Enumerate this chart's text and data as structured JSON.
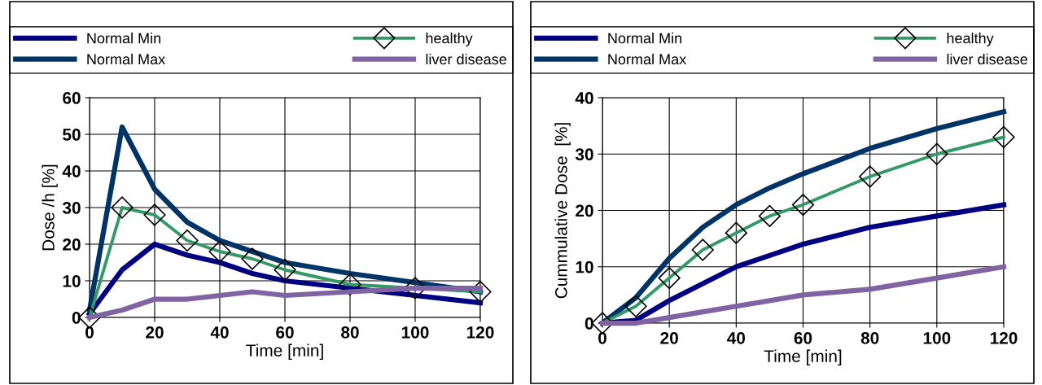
{
  "chart_data": [
    {
      "type": "line",
      "xlabel": "Time [min]",
      "ylabel": "Dose /h [%]",
      "x": [
        0,
        10,
        20,
        30,
        40,
        50,
        60,
        80,
        100,
        120
      ],
      "xlim": [
        0,
        120
      ],
      "xticks": [
        0,
        20,
        40,
        60,
        80,
        100,
        120
      ],
      "ylim": [
        0,
        60
      ],
      "yticks": [
        0,
        10,
        20,
        30,
        40,
        50,
        60
      ],
      "grid": true,
      "legend": "top",
      "series": [
        {
          "name": "Normal Min",
          "color": "#000080",
          "marker": "none",
          "values": [
            1,
            13,
            20,
            17,
            15,
            12,
            10,
            8,
            6,
            4
          ]
        },
        {
          "name": "Normal Max",
          "color": "#003366",
          "marker": "none",
          "values": [
            2,
            52,
            35,
            26,
            21,
            18,
            15,
            12,
            9.5,
            7
          ]
        },
        {
          "name": "healthy",
          "color": "#339966",
          "marker": "diamond",
          "values": [
            0,
            30,
            28,
            21,
            18,
            16,
            13,
            9,
            8,
            7
          ]
        },
        {
          "name": "liver disease",
          "color": "#8064a2",
          "marker": "none",
          "values": [
            0,
            2,
            5,
            5,
            6,
            7,
            6,
            7,
            8,
            8
          ]
        }
      ]
    },
    {
      "type": "line",
      "xlabel": "Time [min]",
      "ylabel": "Cummulative Dose  [%]",
      "x": [
        0,
        10,
        20,
        30,
        40,
        50,
        60,
        80,
        100,
        120
      ],
      "xlim": [
        0,
        120
      ],
      "xticks": [
        0,
        20,
        40,
        60,
        80,
        100,
        120
      ],
      "ylim": [
        0,
        40
      ],
      "yticks": [
        0,
        10,
        20,
        30,
        40
      ],
      "grid": true,
      "legend": "top",
      "series": [
        {
          "name": "Normal Min",
          "color": "#000080",
          "marker": "none",
          "values": [
            0,
            0.5,
            4,
            7,
            10,
            12,
            14,
            17,
            19,
            21
          ]
        },
        {
          "name": "Normal Max",
          "color": "#003366",
          "marker": "none",
          "values": [
            0,
            4.5,
            11.5,
            17,
            21,
            24,
            26.5,
            31,
            34.5,
            37.5
          ]
        },
        {
          "name": "healthy",
          "color": "#339966",
          "marker": "diamond",
          "values": [
            0,
            3,
            8,
            13,
            16,
            19,
            21,
            26,
            30,
            33
          ]
        },
        {
          "name": "liver disease",
          "color": "#8064a2",
          "marker": "none",
          "values": [
            0,
            0,
            1,
            2,
            3,
            4,
            5,
            6,
            8,
            10
          ]
        }
      ]
    }
  ]
}
